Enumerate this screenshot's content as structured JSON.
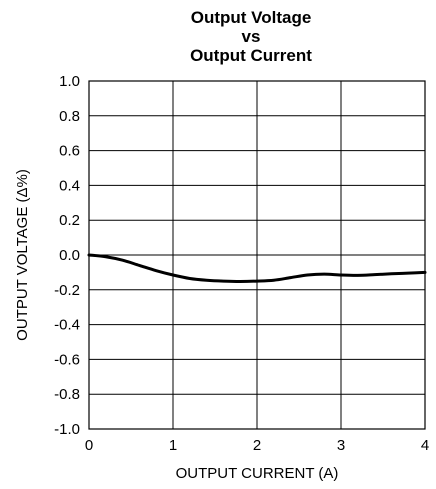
{
  "chart_data": {
    "type": "line",
    "title_lines": [
      "Output Voltage",
      "vs",
      "Output Current"
    ],
    "xlabel": "OUTPUT CURRENT (A)",
    "ylabel": "OUTPUT VOLTAGE (Δ%)",
    "xlim": [
      0,
      4
    ],
    "ylim": [
      -1.0,
      1.0
    ],
    "x_ticks": [
      "0",
      "1",
      "2",
      "3",
      "4"
    ],
    "y_ticks": [
      "1.0",
      "0.8",
      "0.6",
      "0.4",
      "0.2",
      "0.0",
      "-0.2",
      "-0.4",
      "-0.6",
      "-0.8",
      "-1.0"
    ],
    "grid": true,
    "line_color": "#000000",
    "series": [
      {
        "x": [
          0,
          0.2,
          0.4,
          0.6,
          0.8,
          1.0,
          1.2,
          1.4,
          1.6,
          1.8,
          2.0,
          2.2,
          2.4,
          2.6,
          2.8,
          3.0,
          3.2,
          3.4,
          3.6,
          3.8,
          4.0
        ],
        "y": [
          0.0,
          -0.01,
          -0.03,
          -0.06,
          -0.09,
          -0.115,
          -0.135,
          -0.145,
          -0.15,
          -0.152,
          -0.15,
          -0.145,
          -0.13,
          -0.115,
          -0.11,
          -0.115,
          -0.117,
          -0.113,
          -0.108,
          -0.104,
          -0.1
        ]
      }
    ]
  }
}
